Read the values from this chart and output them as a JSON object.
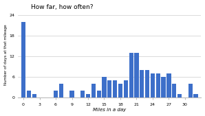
{
  "title": "How far, how often?",
  "xlabel": "Miles in a day",
  "ylabel": "Number of days at that mileage",
  "bar_color": "#3d6fc9",
  "background_color": "#ffffff",
  "grid_color": "#cccccc",
  "ylim": [
    0,
    25
  ],
  "yticks": [
    0,
    6,
    12,
    18,
    24
  ],
  "xticks": [
    0,
    3,
    6,
    9,
    12,
    15,
    18,
    21,
    24,
    27,
    30
  ],
  "values": [
    22,
    2,
    1,
    0,
    0,
    0,
    2,
    4,
    0,
    2,
    0,
    2,
    1,
    4,
    2,
    6,
    5,
    5,
    4,
    5,
    13,
    13,
    8,
    8,
    7,
    7,
    6,
    7,
    4,
    1,
    0,
    4,
    1
  ],
  "figsize": [
    2.98,
    1.69
  ],
  "dpi": 100
}
